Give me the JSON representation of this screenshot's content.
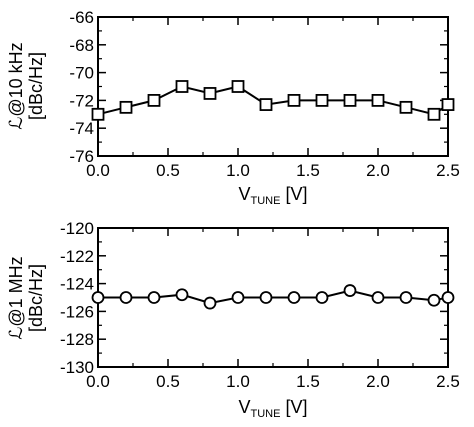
{
  "chart_data": [
    {
      "type": "line",
      "x": [
        0.0,
        0.2,
        0.4,
        0.6,
        0.8,
        1.0,
        1.2,
        1.4,
        1.6,
        1.8,
        2.0,
        2.2,
        2.4,
        2.5
      ],
      "series": [
        {
          "values": [
            -73.0,
            -72.5,
            -72.0,
            -71.0,
            -71.5,
            -71.0,
            -72.3,
            -72.0,
            -72.0,
            -72.0,
            -72.0,
            -72.5,
            -73.0,
            -72.3
          ],
          "marker": "square"
        }
      ],
      "xlim": [
        0.0,
        2.5
      ],
      "ylim": [
        -76,
        -66
      ],
      "xticks": [
        "0.0",
        "0.5",
        "1.0",
        "1.5",
        "2.0",
        "2.5"
      ],
      "yticks": [
        "-66",
        "-68",
        "-70",
        "-72",
        "-74",
        "-76"
      ],
      "xlabel": {
        "main": "V",
        "sub": "TUNE",
        "unit": " [V]"
      },
      "ylabel": {
        "line1": "ℒ@10 kHz",
        "line2": "[dBc/Hz]"
      },
      "grid": false
    },
    {
      "type": "line",
      "x": [
        0.0,
        0.2,
        0.4,
        0.6,
        0.8,
        1.0,
        1.2,
        1.4,
        1.6,
        1.8,
        2.0,
        2.2,
        2.4,
        2.5
      ],
      "series": [
        {
          "values": [
            -125.0,
            -125.0,
            -125.0,
            -124.8,
            -125.4,
            -125.0,
            -125.0,
            -125.0,
            -125.0,
            -124.5,
            -125.0,
            -125.0,
            -125.2,
            -125.0
          ],
          "marker": "circle"
        }
      ],
      "xlim": [
        0.0,
        2.5
      ],
      "ylim": [
        -130,
        -120
      ],
      "xticks": [
        "0.0",
        "0.5",
        "1.0",
        "1.5",
        "2.0",
        "2.5"
      ],
      "yticks": [
        "-120",
        "-122",
        "-124",
        "-126",
        "-128",
        "-130"
      ],
      "xlabel": {
        "main": "V",
        "sub": "TUNE",
        "unit": " [V]"
      },
      "ylabel": {
        "line1": "ℒ@1 MHz",
        "line2": "[dBc/Hz]"
      },
      "grid": false
    }
  ]
}
